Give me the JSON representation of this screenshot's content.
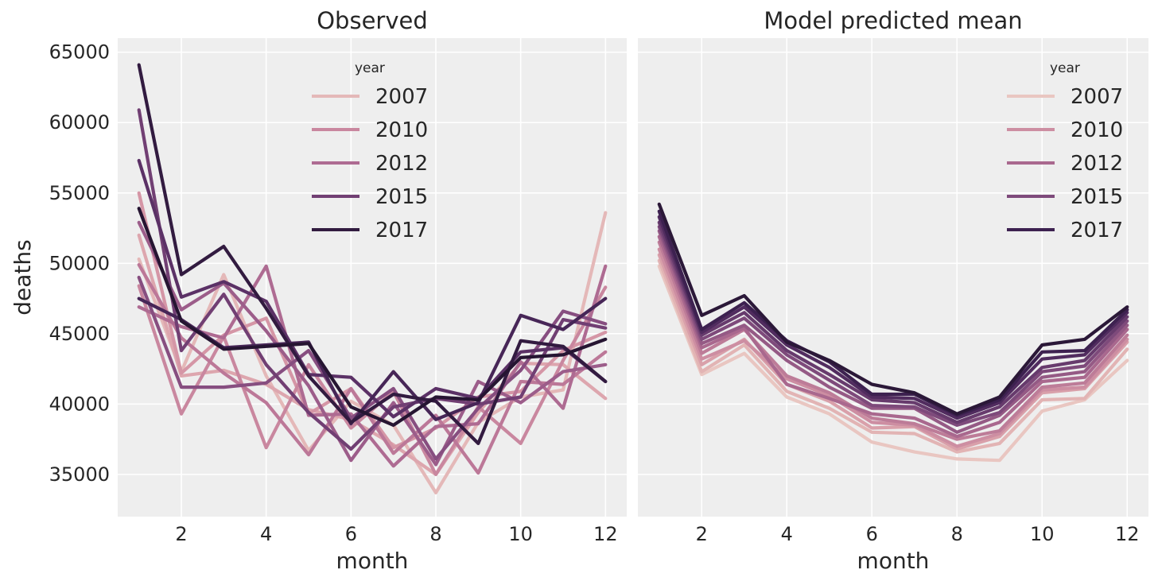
{
  "chart_data": [
    {
      "type": "line",
      "title": "Observed",
      "xlabel": "month",
      "ylabel": "deaths",
      "xlim": [
        0.5,
        12.5
      ],
      "ylim": [
        32000,
        66000
      ],
      "xticks": [
        2,
        4,
        6,
        8,
        10,
        12
      ],
      "yticks": [
        35000,
        40000,
        45000,
        50000,
        55000,
        60000,
        65000
      ],
      "grid": true,
      "legend": {
        "title": "year",
        "placement": "top-center",
        "entries": [
          "2007",
          "2010",
          "2012",
          "2015",
          "2017"
        ]
      },
      "x": [
        1,
        2,
        3,
        4,
        5,
        6,
        7,
        8,
        9,
        10,
        11,
        12
      ],
      "series": [
        {
          "name": "2007",
          "color": "#e4b8b8",
          "values": [
            50300,
            42300,
            49200,
            42000,
            36700,
            40200,
            38500,
            33700,
            38700,
            40500,
            41000,
            53600
          ]
        },
        {
          "name": "",
          "color": "#dda6ae",
          "values": [
            52000,
            42000,
            42400,
            41400,
            39600,
            38900,
            37100,
            35000,
            39400,
            42900,
            42800,
            40400
          ]
        },
        {
          "name": "",
          "color": "#d596a6",
          "values": [
            55000,
            42200,
            44900,
            46100,
            39300,
            41100,
            36900,
            38300,
            40500,
            40900,
            43800,
            45100
          ]
        },
        {
          "name": "2010",
          "color": "#c9879f",
          "values": [
            48400,
            39300,
            44800,
            36900,
            42800,
            38300,
            40900,
            35000,
            39800,
            37200,
            43100,
            48300
          ]
        },
        {
          "name": "",
          "color": "#bc7898",
          "values": [
            49900,
            44700,
            42200,
            40100,
            36400,
            41100,
            36500,
            39200,
            35100,
            41600,
            41400,
            43700
          ]
        },
        {
          "name": "2012",
          "color": "#ae6b92",
          "values": [
            46900,
            45500,
            44700,
            49800,
            39200,
            39300,
            35600,
            38400,
            38600,
            43000,
            39700,
            49800
          ]
        },
        {
          "name": "",
          "color": "#9c5d8a",
          "values": [
            52900,
            46700,
            48600,
            45200,
            41300,
            36000,
            40100,
            35700,
            41600,
            40100,
            42300,
            42800
          ]
        },
        {
          "name": "",
          "color": "#874e80",
          "values": [
            49000,
            41200,
            41200,
            41500,
            43800,
            39000,
            41100,
            36100,
            39700,
            42400,
            46600,
            45700
          ]
        },
        {
          "name": "2015",
          "color": "#713f73",
          "values": [
            60900,
            43800,
            47800,
            42800,
            39400,
            36800,
            39800,
            40400,
            40000,
            40500,
            46000,
            45400
          ]
        },
        {
          "name": "",
          "color": "#5b3166",
          "values": [
            57300,
            47600,
            48700,
            47300,
            42100,
            41900,
            39100,
            41100,
            40400,
            43700,
            44000,
            41600
          ]
        },
        {
          "name": "",
          "color": "#472657",
          "values": [
            47500,
            46000,
            44000,
            44200,
            44400,
            38600,
            42300,
            38900,
            40100,
            46300,
            45300,
            47500
          ]
        },
        {
          "name": "2017",
          "color": "#321b40",
          "values": [
            64100,
            49200,
            51200,
            46800,
            42000,
            38700,
            40700,
            40200,
            37200,
            44500,
            44100,
            41600
          ]
        },
        {
          "name": "",
          "color": "#261532",
          "values": [
            53900,
            45900,
            43900,
            44100,
            44300,
            39800,
            38500,
            40500,
            40300,
            43300,
            43500,
            44600
          ]
        }
      ]
    },
    {
      "type": "line",
      "title": "Model predicted mean",
      "xlabel": "month",
      "xlim": [
        0.5,
        12.5
      ],
      "ylim": [
        32000,
        66000
      ],
      "xticks": [
        2,
        4,
        6,
        8,
        10,
        12
      ],
      "grid": true,
      "legend": {
        "title": "year",
        "placement": "top-right",
        "entries": [
          "2007",
          "2010",
          "2012",
          "2015",
          "2017"
        ]
      },
      "x": [
        1,
        2,
        3,
        4,
        5,
        6,
        7,
        8,
        9,
        10,
        11,
        12
      ],
      "series": [
        {
          "name": "2007",
          "color": "#e9c6c1",
          "values": [
            49800,
            42100,
            43600,
            40500,
            39300,
            37300,
            36600,
            36100,
            36000,
            39500,
            40300,
            43100
          ]
        },
        {
          "name": "",
          "color": "#e2b4b4",
          "values": [
            50200,
            42300,
            44200,
            40900,
            39700,
            38000,
            37900,
            36600,
            37200,
            40300,
            40400,
            43900
          ]
        },
        {
          "name": "",
          "color": "#d9a0aa",
          "values": [
            50600,
            42800,
            44600,
            41400,
            40200,
            38300,
            38400,
            36800,
            37700,
            40800,
            41100,
            44400
          ]
        },
        {
          "name": "2010",
          "color": "#cd8ea2",
          "values": [
            51000,
            43200,
            44500,
            41800,
            40600,
            38700,
            38500,
            37000,
            37900,
            41000,
            41200,
            44600
          ]
        },
        {
          "name": "",
          "color": "#bd7c98",
          "values": [
            51500,
            43600,
            45300,
            42000,
            40800,
            39000,
            38600,
            37500,
            38100,
            41200,
            41500,
            44900
          ]
        },
        {
          "name": "2012",
          "color": "#a9688e",
          "values": [
            51900,
            44000,
            45400,
            41400,
            40400,
            39300,
            39000,
            37700,
            38700,
            41600,
            41900,
            45300
          ]
        },
        {
          "name": "",
          "color": "#955a85",
          "values": [
            52300,
            44300,
            45600,
            43100,
            41200,
            39700,
            39700,
            38000,
            39200,
            41900,
            42300,
            45600
          ]
        },
        {
          "name": "2015",
          "color": "#7e4a7b",
          "values": [
            52600,
            44600,
            46100,
            43500,
            41700,
            39900,
            39800,
            38500,
            39400,
            42300,
            42700,
            45900
          ]
        },
        {
          "name": "",
          "color": "#673b6d",
          "values": [
            52900,
            44900,
            46500,
            43800,
            42100,
            40300,
            40100,
            38700,
            39800,
            42600,
            43100,
            46200
          ]
        },
        {
          "name": "",
          "color": "#512c5f",
          "values": [
            53300,
            45100,
            46900,
            44200,
            42600,
            40500,
            40400,
            39000,
            40100,
            43200,
            43500,
            46500
          ]
        },
        {
          "name": "2017",
          "color": "#3d2150",
          "values": [
            53700,
            45300,
            47200,
            44500,
            43000,
            40700,
            40700,
            39200,
            40300,
            43700,
            43800,
            46700
          ]
        },
        {
          "name": "",
          "color": "#2b1838",
          "values": [
            54200,
            46300,
            47700,
            44400,
            43100,
            41400,
            40800,
            39300,
            40500,
            44200,
            44600,
            46900
          ]
        }
      ]
    }
  ]
}
